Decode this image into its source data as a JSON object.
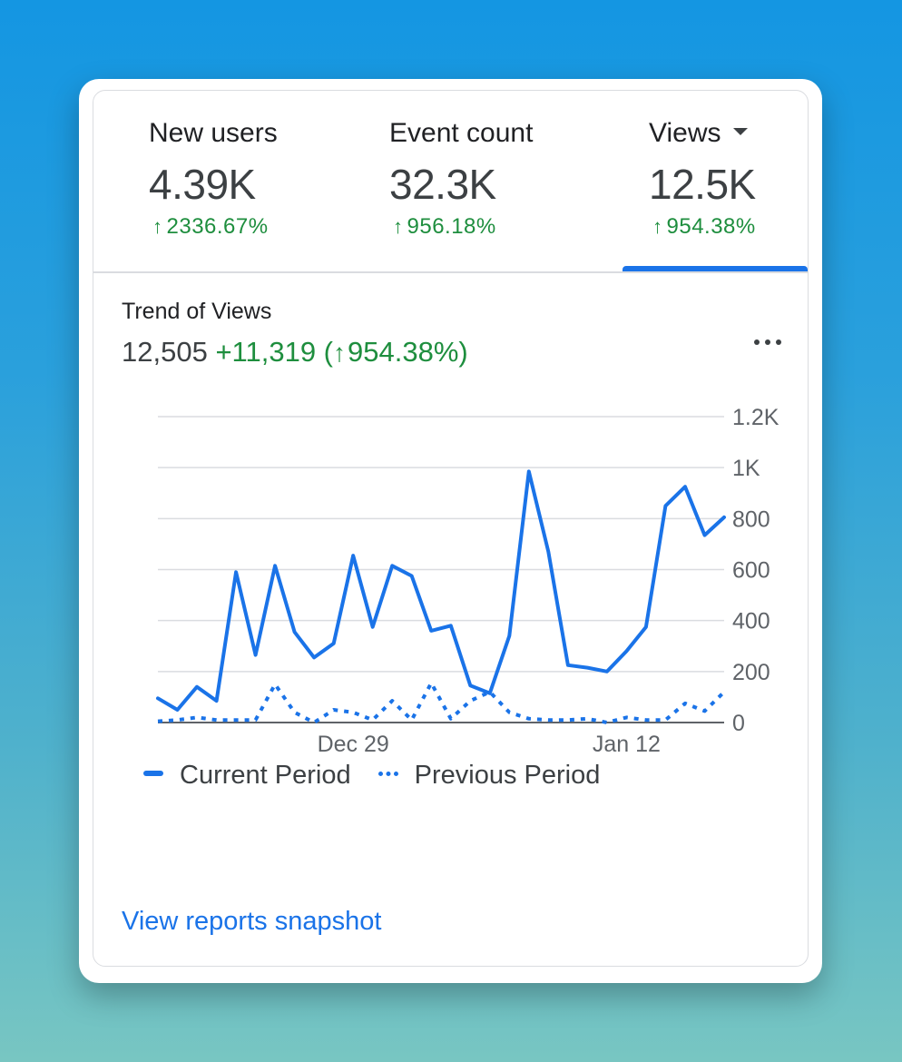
{
  "metrics": [
    {
      "label": "New users",
      "value": "4.39K",
      "change": "2336.67%"
    },
    {
      "label": "Event count",
      "value": "32.3K",
      "change": "956.18%"
    },
    {
      "label": "Views",
      "value": "12.5K",
      "change": "954.38%",
      "selected": true
    }
  ],
  "trend": {
    "title": "Trend of Views",
    "total": "12,505",
    "delta": "+11,319 (",
    "delta_pct": "954.38%)"
  },
  "icons": {
    "more": "more-horizontal-icon",
    "up_arrow": "arrow-up-icon",
    "dropdown": "caret-down-icon"
  },
  "colors": {
    "accent": "#1a73e8",
    "positive": "#1e8e3e"
  },
  "cta": {
    "label": "View reports snapshot"
  },
  "chart_data": {
    "type": "line",
    "x_tick_labels": [
      {
        "index": 10,
        "label": "Dec 29"
      },
      {
        "index": 24,
        "label": "Jan 12"
      }
    ],
    "y_ticks": [
      {
        "value": 0,
        "label": "0"
      },
      {
        "value": 200,
        "label": "200"
      },
      {
        "value": 400,
        "label": "400"
      },
      {
        "value": 600,
        "label": "600"
      },
      {
        "value": 800,
        "label": "800"
      },
      {
        "value": 1000,
        "label": "1K"
      },
      {
        "value": 1200,
        "label": "1.2K"
      }
    ],
    "ylim": [
      0,
      1200
    ],
    "y_axis_position": "right",
    "grid": true,
    "legend_position": "bottom-left",
    "series": [
      {
        "name": "Current Period",
        "style": "solid",
        "values": [
          95,
          50,
          140,
          85,
          590,
          265,
          615,
          355,
          255,
          310,
          655,
          375,
          615,
          575,
          360,
          380,
          145,
          115,
          340,
          985,
          670,
          225,
          215,
          200,
          280,
          375,
          850,
          925,
          735,
          805
        ]
      },
      {
        "name": "Previous Period",
        "style": "dotted",
        "values": [
          5,
          10,
          20,
          10,
          10,
          10,
          150,
          40,
          0,
          50,
          40,
          10,
          85,
          10,
          155,
          15,
          85,
          120,
          40,
          15,
          10,
          10,
          15,
          0,
          20,
          10,
          10,
          75,
          45,
          120
        ]
      }
    ]
  }
}
